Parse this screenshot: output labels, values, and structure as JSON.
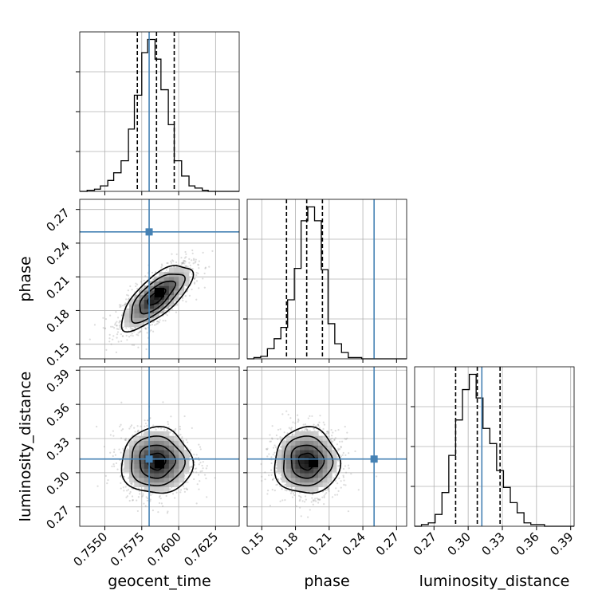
{
  "chart_data": {
    "type": "corner",
    "parameters": [
      {
        "label": "geocent_time",
        "range": [
          0.7533,
          0.7641
        ],
        "ticks": [
          0.755,
          0.7575,
          0.76,
          0.7625
        ],
        "tick_labels": [
          "0.7550",
          "0.7575",
          "0.7600",
          "0.7625"
        ],
        "truth": 0.758,
        "quantiles": [
          0.7572,
          0.7585,
          0.7597
        ],
        "hist": {
          "edges": [
            0.7533,
            0.7538,
            0.7543,
            0.7547,
            0.7552,
            0.7556,
            0.7561,
            0.7566,
            0.757,
            0.7575,
            0.7579,
            0.7584,
            0.7588,
            0.7593,
            0.7597,
            0.7602,
            0.7607,
            0.7611,
            0.7616,
            0.762,
            0.7625,
            0.763,
            0.7634,
            0.7641
          ],
          "counts": [
            0,
            1,
            2,
            5,
            10,
            17,
            28,
            57,
            88,
            127,
            139,
            121,
            93,
            61,
            28,
            14,
            5,
            3,
            1,
            0,
            0,
            0,
            0
          ]
        }
      },
      {
        "label": "phase",
        "range": [
          0.137,
          0.279
        ],
        "ticks": [
          0.15,
          0.18,
          0.21,
          0.24,
          0.27
        ],
        "tick_labels": [
          "0.15",
          "0.18",
          "0.21",
          "0.24",
          "0.27"
        ],
        "truth": 0.25,
        "quantiles": [
          0.172,
          0.19,
          0.204
        ],
        "hist": {
          "edges": [
            0.137,
            0.143,
            0.149,
            0.155,
            0.161,
            0.167,
            0.173,
            0.179,
            0.185,
            0.191,
            0.197,
            0.203,
            0.209,
            0.215,
            0.221,
            0.227,
            0.233,
            0.239,
            0.245,
            0.251,
            0.257,
            0.263,
            0.269,
            0.279
          ],
          "counts": [
            0,
            1,
            2,
            8,
            16,
            25,
            47,
            72,
            110,
            121,
            110,
            71,
            28,
            12,
            5,
            1,
            1,
            0,
            0,
            0,
            0,
            0,
            0
          ]
        }
      },
      {
        "label": "luminosity_distance",
        "range": [
          0.253,
          0.393
        ],
        "ticks": [
          0.27,
          0.3,
          0.33,
          0.36,
          0.39
        ],
        "tick_labels": [
          "0.27",
          "0.30",
          "0.33",
          "0.36",
          "0.39"
        ],
        "truth": 0.312,
        "quantiles": [
          0.289,
          0.308,
          0.328
        ],
        "hist": {
          "edges": [
            0.253,
            0.259,
            0.265,
            0.271,
            0.277,
            0.283,
            0.289,
            0.295,
            0.301,
            0.307,
            0.313,
            0.319,
            0.325,
            0.331,
            0.337,
            0.343,
            0.349,
            0.355,
            0.361,
            0.367,
            0.373,
            0.379,
            0.385,
            0.393
          ],
          "counts": [
            0,
            1,
            2,
            7,
            20,
            42,
            63,
            81,
            90,
            76,
            58,
            49,
            33,
            23,
            14,
            8,
            2,
            1,
            1,
            0,
            0,
            0,
            0
          ]
        }
      }
    ],
    "blobs": [
      {
        "i": 0,
        "j": 1,
        "mean": [
          0.7585,
          0.192
        ],
        "sd": [
          0.0012,
          0.0145
        ],
        "rho": 0.72,
        "peak": [
          0.7587,
          0.196
        ]
      },
      {
        "i": 0,
        "j": 2,
        "mean": [
          0.7585,
          0.31
        ],
        "sd": [
          0.0012,
          0.0145
        ],
        "rho": 0.0,
        "peak": [
          0.7587,
          0.308
        ]
      },
      {
        "i": 1,
        "j": 2,
        "mean": [
          0.19,
          0.31
        ],
        "sd": [
          0.0145,
          0.0145
        ],
        "rho": 0.0,
        "peak": [
          0.196,
          0.309
        ]
      }
    ],
    "colors": {
      "truth": "#4682b4",
      "hist": "#000000",
      "quantile": "#000000",
      "grid": "#b0b0b0"
    },
    "grid": true
  }
}
